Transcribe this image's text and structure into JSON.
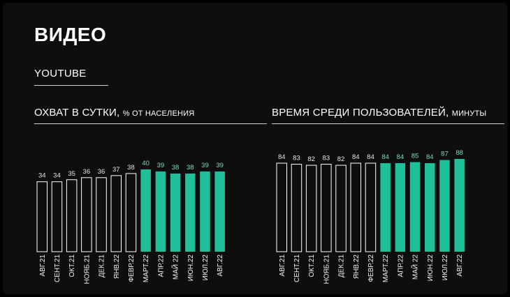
{
  "header": {
    "title": "ВИДЕО",
    "subtitle": "YOUTUBE"
  },
  "colors": {
    "background": "#0e0e0e",
    "highlight": "#1fbf9a",
    "highlight_label": "#7dd9c0",
    "outline": "#ffffff"
  },
  "chart_data": [
    {
      "type": "bar",
      "title": "ОХВАТ В СУТКИ,",
      "title_unit": "% ОТ НАСЕЛЕНИЯ",
      "categories": [
        "АВГ.21",
        "СЕНТ.21",
        "ОКТ.21",
        "НОЯБ.21",
        "ДЕК.21",
        "ЯНВ.22",
        "ФЕВР.22",
        "МАРТ.22",
        "АПР.22",
        "МАЙ 22",
        "ИЮН.22",
        "ИЮЛ.22",
        "АВГ.22"
      ],
      "values": [
        34,
        34,
        35,
        36,
        36,
        37,
        38,
        40,
        39,
        38,
        38,
        39,
        39
      ],
      "highlight_from_index": 7,
      "ylim": [
        0,
        40
      ]
    },
    {
      "type": "bar",
      "title": "ВРЕМЯ СРЕДИ ПОЛЬЗОВАТЕЛЕЙ,",
      "title_unit": "МИНУТЫ",
      "categories": [
        "АВГ.21",
        "СЕНТ.21",
        "ОКТ.21",
        "НОЯБ.21",
        "ДЕК.21",
        "ЯНВ.22",
        "ФЕВР.22",
        "МАРТ.22",
        "АПР.22",
        "МАЙ 22",
        "ИЮН.22",
        "ИЮЛ.22",
        "АВГ.22"
      ],
      "values": [
        84,
        83,
        82,
        83,
        82,
        84,
        84,
        84,
        84,
        85,
        84,
        87,
        88
      ],
      "highlight_from_index": 7,
      "ylim": [
        0,
        88
      ]
    }
  ]
}
